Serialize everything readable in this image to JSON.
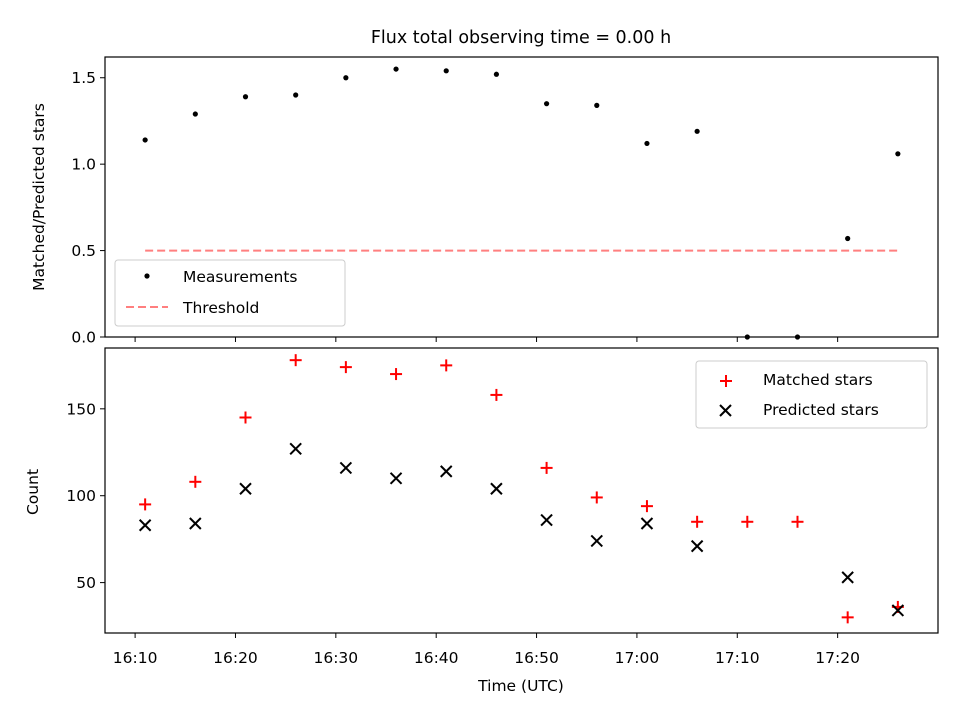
{
  "title": "Flux total observing time = 0.00 h",
  "colors": {
    "measurements": "#000000",
    "threshold": "#ff7f7f",
    "matched": "#ff0000",
    "predicted": "#000000"
  },
  "chart_data": [
    {
      "type": "scatter",
      "title": "Flux total observing time = 0.00 h",
      "xlabel": "",
      "ylabel": "Matched/Predicted stars",
      "x": [
        "16:11",
        "16:16",
        "16:21",
        "16:26",
        "16:31",
        "16:36",
        "16:41",
        "16:46",
        "16:51",
        "16:56",
        "17:01",
        "17:06",
        "17:11",
        "17:16",
        "17:21",
        "17:26"
      ],
      "xlim": [
        "16:07",
        "17:30"
      ],
      "ylim": [
        0,
        1.62
      ],
      "yticks": [
        0.0,
        0.5,
        1.0,
        1.5
      ],
      "ytick_labels": [
        "0.0",
        "0.5",
        "1.0",
        "1.5"
      ],
      "series": [
        {
          "name": "Measurements",
          "values": [
            1.14,
            1.29,
            1.39,
            1.4,
            1.5,
            1.55,
            1.54,
            1.52,
            1.35,
            1.34,
            1.12,
            1.19,
            0.0,
            0.0,
            0.57,
            1.06
          ]
        },
        {
          "name": "Threshold",
          "values": [
            0.5,
            0.5,
            0.5,
            0.5,
            0.5,
            0.5,
            0.5,
            0.5,
            0.5,
            0.5,
            0.5,
            0.5,
            0.5,
            0.5,
            0.5,
            0.5
          ]
        }
      ],
      "legend": "lower-left"
    },
    {
      "type": "scatter",
      "title": "",
      "xlabel": "Time (UTC)",
      "ylabel": "Count",
      "x": [
        "16:11",
        "16:16",
        "16:21",
        "16:26",
        "16:31",
        "16:36",
        "16:41",
        "16:46",
        "16:51",
        "16:56",
        "17:01",
        "17:06",
        "17:11",
        "17:16",
        "17:21",
        "17:26"
      ],
      "xlim": [
        "16:07",
        "17:30"
      ],
      "ylim": [
        21,
        185
      ],
      "xticks": [
        "16:10",
        "16:20",
        "16:30",
        "16:40",
        "16:50",
        "17:00",
        "17:10",
        "17:20"
      ],
      "yticks": [
        50,
        100,
        150
      ],
      "series": [
        {
          "name": "Matched stars",
          "values": [
            95,
            108,
            145,
            178,
            174,
            170,
            175,
            158,
            116,
            99,
            94,
            85,
            85,
            85,
            30,
            36
          ]
        },
        {
          "name": "Predicted stars",
          "values": [
            83,
            84,
            104,
            127,
            116,
            110,
            114,
            104,
            86,
            74,
            84,
            71,
            null,
            null,
            53,
            34
          ]
        }
      ],
      "legend": "upper-right"
    }
  ]
}
